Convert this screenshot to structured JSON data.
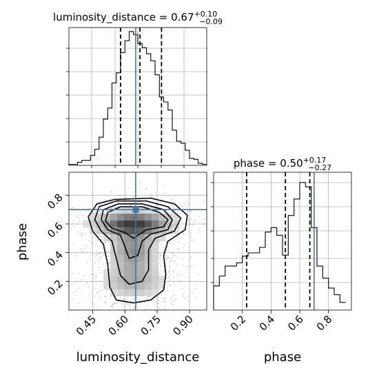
{
  "colors": {
    "truth": "#4477aa",
    "hist": "#000000",
    "grid": "#b0b0b0",
    "density": "#000000",
    "background": "#ffffff"
  },
  "chart_data": [
    {
      "type": "bar",
      "panel": "luminosity_distance marginal",
      "title": {
        "name": "luminosity_distance",
        "median": "0.67",
        "plus": "+0.10",
        "minus": "−0.09"
      },
      "x": [
        0.34,
        0.36,
        0.38,
        0.4,
        0.42,
        0.44,
        0.46,
        0.48,
        0.5,
        0.52,
        0.54,
        0.56,
        0.58,
        0.6,
        0.62,
        0.64,
        0.66,
        0.68,
        0.7,
        0.72,
        0.74,
        0.76,
        0.78,
        0.8,
        0.82,
        0.84,
        0.86,
        0.88,
        0.9,
        0.92,
        0.94,
        0.96
      ],
      "values": [
        1,
        1,
        3,
        5,
        5,
        10,
        16,
        28,
        46,
        57,
        82,
        92,
        112,
        124,
        133,
        130,
        121,
        117,
        111,
        104,
        90,
        68,
        63,
        55,
        35,
        24,
        22,
        15,
        7,
        6,
        2,
        1
      ],
      "xlim": [
        0.34,
        0.98
      ],
      "quantiles": [
        0.58,
        0.67,
        0.77
      ],
      "truth": 0.65
    },
    {
      "type": "bar",
      "panel": "phase marginal",
      "title": {
        "name": "phase",
        "median": "0.50",
        "plus": "+0.17",
        "minus": "−0.27"
      },
      "x": [
        0.0,
        0.04,
        0.08,
        0.12,
        0.16,
        0.2,
        0.24,
        0.28,
        0.32,
        0.36,
        0.4,
        0.44,
        0.48,
        0.52,
        0.56,
        0.6,
        0.64,
        0.68,
        0.72,
        0.76,
        0.8,
        0.84,
        0.88
      ],
      "values": [
        22,
        31,
        40,
        40,
        43,
        49,
        52,
        52,
        57,
        71,
        75,
        68,
        50,
        86,
        101,
        116,
        112,
        75,
        40,
        29,
        20,
        14,
        7
      ],
      "xlim": [
        0.0,
        0.96
      ],
      "xticks": [
        "0.2",
        "0.4",
        "0.6",
        "0.8"
      ],
      "xlabel": "phase",
      "quantiles": [
        0.23,
        0.5,
        0.67
      ],
      "truth": 0.7
    },
    {
      "type": "heatmap",
      "panel": "joint luminosity_distance vs phase",
      "xlabel": "luminosity_distance",
      "ylabel": "phase",
      "xlim": [
        0.34,
        0.98
      ],
      "ylim": [
        0.0,
        0.96
      ],
      "xticks": [
        "0.45",
        "0.60",
        "0.75",
        "0.90"
      ],
      "yticks": [
        "0.2",
        "0.4",
        "0.6",
        "0.8"
      ],
      "truth": {
        "x": 0.65,
        "y": 0.7
      },
      "density_centers": [
        {
          "x": 0.64,
          "y": 0.6,
          "sx": 0.1,
          "sy": 0.05,
          "w": 1.0
        },
        {
          "x": 0.64,
          "y": 0.42,
          "sx": 0.06,
          "sy": 0.1,
          "w": 0.55
        },
        {
          "x": 0.64,
          "y": 0.2,
          "sx": 0.08,
          "sy": 0.07,
          "w": 0.35
        }
      ],
      "contours": [
        [
          [
            0.52,
            0.68
          ],
          [
            0.58,
            0.72
          ],
          [
            0.68,
            0.72
          ],
          [
            0.76,
            0.68
          ],
          [
            0.8,
            0.63
          ],
          [
            0.78,
            0.58
          ],
          [
            0.7,
            0.56
          ],
          [
            0.66,
            0.52
          ],
          [
            0.64,
            0.5
          ],
          [
            0.6,
            0.54
          ],
          [
            0.54,
            0.57
          ],
          [
            0.51,
            0.62
          ]
        ],
        [
          [
            0.5,
            0.7
          ],
          [
            0.57,
            0.74
          ],
          [
            0.68,
            0.74
          ],
          [
            0.78,
            0.7
          ],
          [
            0.82,
            0.63
          ],
          [
            0.8,
            0.56
          ],
          [
            0.72,
            0.53
          ],
          [
            0.68,
            0.48
          ],
          [
            0.66,
            0.38
          ],
          [
            0.62,
            0.36
          ],
          [
            0.6,
            0.44
          ],
          [
            0.58,
            0.52
          ],
          [
            0.52,
            0.56
          ],
          [
            0.49,
            0.63
          ]
        ],
        [
          [
            0.48,
            0.72
          ],
          [
            0.56,
            0.76
          ],
          [
            0.7,
            0.76
          ],
          [
            0.8,
            0.72
          ],
          [
            0.86,
            0.64
          ],
          [
            0.83,
            0.55
          ],
          [
            0.74,
            0.5
          ],
          [
            0.71,
            0.42
          ],
          [
            0.71,
            0.28
          ],
          [
            0.68,
            0.2
          ],
          [
            0.62,
            0.18
          ],
          [
            0.58,
            0.24
          ],
          [
            0.56,
            0.36
          ],
          [
            0.54,
            0.48
          ],
          [
            0.49,
            0.55
          ],
          [
            0.46,
            0.63
          ]
        ],
        [
          [
            0.47,
            0.74
          ],
          [
            0.55,
            0.77
          ],
          [
            0.72,
            0.78
          ],
          [
            0.83,
            0.74
          ],
          [
            0.89,
            0.66
          ],
          [
            0.88,
            0.56
          ],
          [
            0.8,
            0.48
          ],
          [
            0.78,
            0.38
          ],
          [
            0.79,
            0.25
          ],
          [
            0.78,
            0.14
          ],
          [
            0.72,
            0.07
          ],
          [
            0.64,
            0.05
          ],
          [
            0.56,
            0.07
          ],
          [
            0.53,
            0.16
          ],
          [
            0.52,
            0.32
          ],
          [
            0.5,
            0.46
          ],
          [
            0.45,
            0.55
          ],
          [
            0.43,
            0.65
          ]
        ]
      ]
    }
  ]
}
